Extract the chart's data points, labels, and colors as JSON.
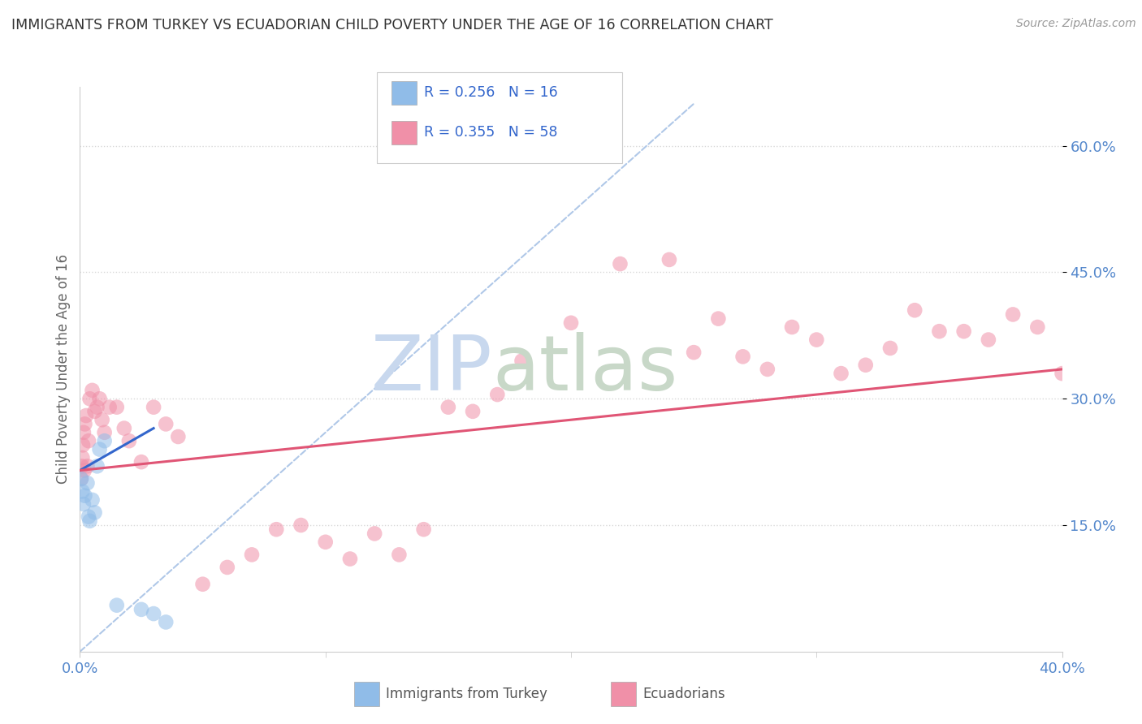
{
  "title": "IMMIGRANTS FROM TURKEY VS ECUADORIAN CHILD POVERTY UNDER THE AGE OF 16 CORRELATION CHART",
  "source": "Source: ZipAtlas.com",
  "ylabel": "Child Poverty Under the Age of 16",
  "legend_entries": [
    {
      "label": "Immigrants from Turkey",
      "R": 0.256,
      "N": 16,
      "color": "#aac8f0"
    },
    {
      "label": "Ecuadorians",
      "R": 0.355,
      "N": 58,
      "color": "#f5aabe"
    }
  ],
  "turkey_scatter": [
    [
      0.05,
      20.5
    ],
    [
      0.1,
      19.0
    ],
    [
      0.15,
      17.5
    ],
    [
      0.2,
      18.5
    ],
    [
      0.3,
      20.0
    ],
    [
      0.35,
      16.0
    ],
    [
      0.4,
      15.5
    ],
    [
      0.5,
      18.0
    ],
    [
      0.6,
      16.5
    ],
    [
      0.7,
      22.0
    ],
    [
      0.8,
      24.0
    ],
    [
      1.0,
      25.0
    ],
    [
      1.5,
      5.5
    ],
    [
      2.5,
      5.0
    ],
    [
      3.0,
      4.5
    ],
    [
      3.5,
      3.5
    ]
  ],
  "ecuador_scatter": [
    [
      0.05,
      20.5
    ],
    [
      0.08,
      22.0
    ],
    [
      0.1,
      23.0
    ],
    [
      0.12,
      24.5
    ],
    [
      0.15,
      26.0
    ],
    [
      0.18,
      21.5
    ],
    [
      0.2,
      27.0
    ],
    [
      0.25,
      28.0
    ],
    [
      0.3,
      22.0
    ],
    [
      0.35,
      25.0
    ],
    [
      0.4,
      30.0
    ],
    [
      0.5,
      31.0
    ],
    [
      0.6,
      28.5
    ],
    [
      0.7,
      29.0
    ],
    [
      0.8,
      30.0
    ],
    [
      0.9,
      27.5
    ],
    [
      1.0,
      26.0
    ],
    [
      1.2,
      29.0
    ],
    [
      1.5,
      29.0
    ],
    [
      1.8,
      26.5
    ],
    [
      2.0,
      25.0
    ],
    [
      2.5,
      22.5
    ],
    [
      3.0,
      29.0
    ],
    [
      3.5,
      27.0
    ],
    [
      4.0,
      25.5
    ],
    [
      5.0,
      8.0
    ],
    [
      6.0,
      10.0
    ],
    [
      7.0,
      11.5
    ],
    [
      8.0,
      14.5
    ],
    [
      9.0,
      15.0
    ],
    [
      10.0,
      13.0
    ],
    [
      11.0,
      11.0
    ],
    [
      12.0,
      14.0
    ],
    [
      13.0,
      11.5
    ],
    [
      14.0,
      14.5
    ],
    [
      15.0,
      29.0
    ],
    [
      16.0,
      28.5
    ],
    [
      17.0,
      30.5
    ],
    [
      18.0,
      34.5
    ],
    [
      20.0,
      39.0
    ],
    [
      22.0,
      46.0
    ],
    [
      24.0,
      46.5
    ],
    [
      25.0,
      35.5
    ],
    [
      26.0,
      39.5
    ],
    [
      27.0,
      35.0
    ],
    [
      28.0,
      33.5
    ],
    [
      29.0,
      38.5
    ],
    [
      30.0,
      37.0
    ],
    [
      31.0,
      33.0
    ],
    [
      32.0,
      34.0
    ],
    [
      33.0,
      36.0
    ],
    [
      34.0,
      40.5
    ],
    [
      35.0,
      38.0
    ],
    [
      36.0,
      38.0
    ],
    [
      37.0,
      37.0
    ],
    [
      38.0,
      40.0
    ],
    [
      39.0,
      38.5
    ],
    [
      40.0,
      33.0
    ]
  ],
  "turkey_line": {
    "x": [
      0.0,
      3.0
    ],
    "y": [
      21.5,
      26.5
    ]
  },
  "ecuador_line": {
    "x": [
      0.0,
      40.0
    ],
    "y": [
      21.5,
      33.5
    ]
  },
  "dashed_line": {
    "x": [
      0.0,
      25.0
    ],
    "y": [
      0.0,
      65.0
    ]
  },
  "xlim": [
    0,
    40.0
  ],
  "ylim": [
    0,
    67.0
  ],
  "yticks": [
    15,
    30,
    45,
    60
  ],
  "yticklabels": [
    "15.0%",
    "30.0%",
    "45.0%",
    "60.0%"
  ],
  "xticks": [
    0,
    40
  ],
  "xticklabels": [
    "0.0%",
    "40.0%"
  ],
  "scatter_size": 180,
  "scatter_alpha": 0.55,
  "turkey_color": "#90bce8",
  "ecuador_color": "#f090a8",
  "turkey_line_color": "#3366cc",
  "ecuador_line_color": "#e05575",
  "dashed_line_color": "#b0c8e8",
  "background_color": "#ffffff",
  "grid_color": "#d8d8d8",
  "title_color": "#333333",
  "source_color": "#999999",
  "legend_text_color": "#3366cc",
  "ylabel_color": "#666666",
  "tick_label_color": "#5588cc",
  "watermark_zip": "ZIP",
  "watermark_atlas": "atlas",
  "watermark_color_zip": "#c8d8ee",
  "watermark_color_atlas": "#c8d8c8"
}
